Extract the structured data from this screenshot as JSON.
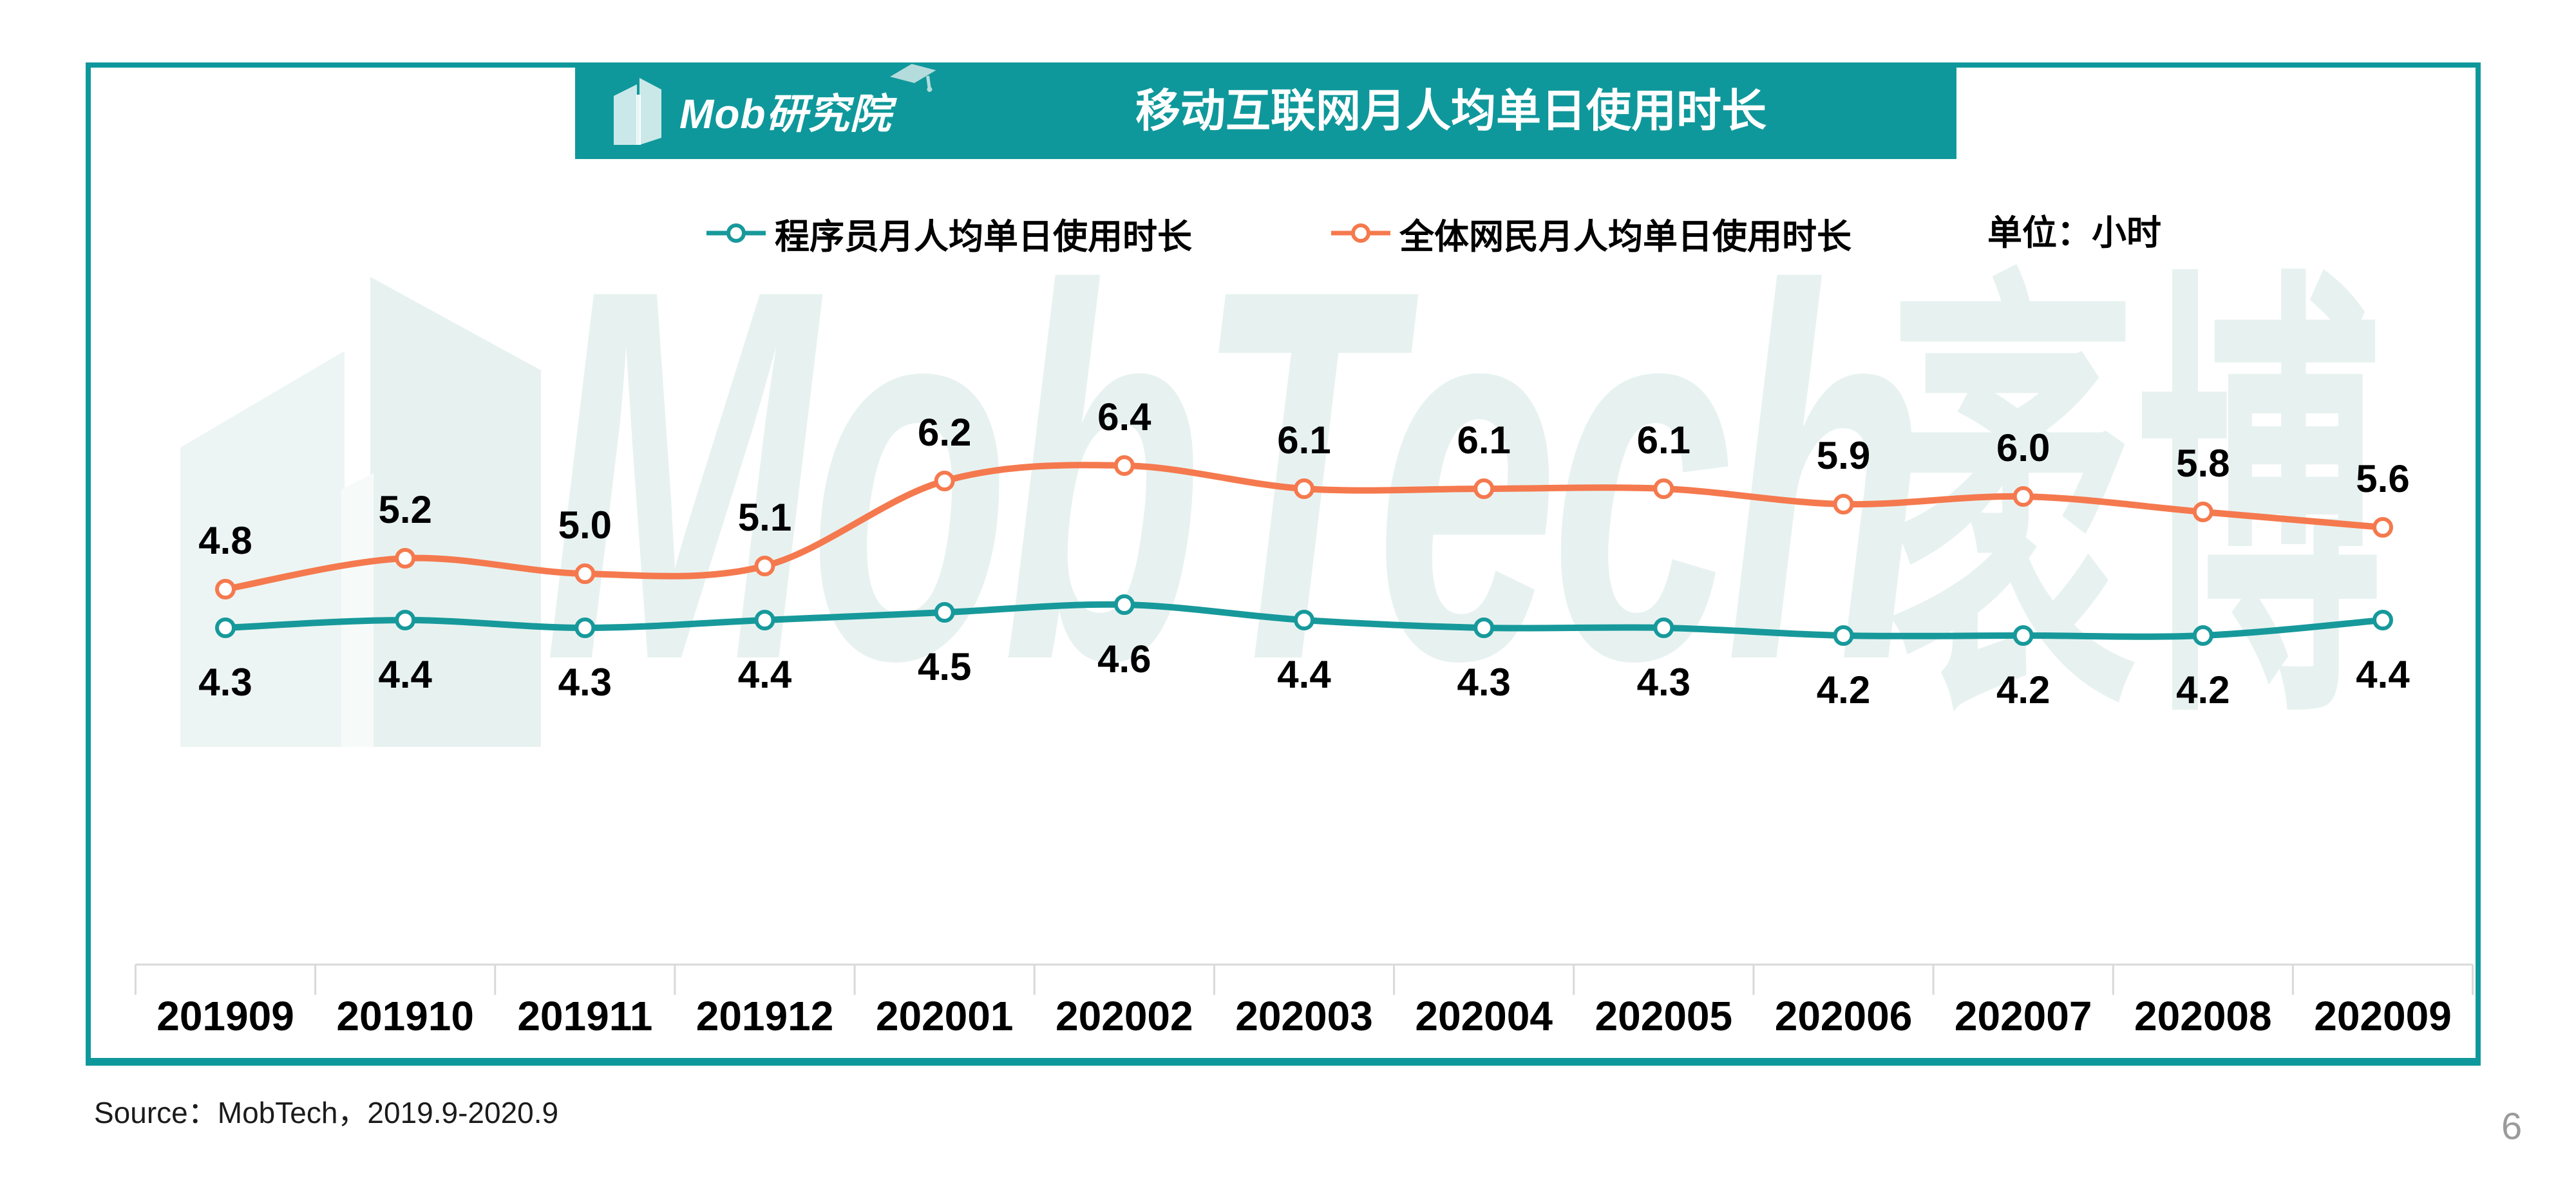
{
  "page": {
    "page_number": "6"
  },
  "header": {
    "logo_text": "Mob研究院",
    "title": "移动互联网月人均单日使用时长",
    "band_color": "#0f989b"
  },
  "legend": {
    "unit_label": "单位：小时"
  },
  "chart_data": {
    "type": "line",
    "title": "移动互联网月人均单日使用时长",
    "unit": "小时",
    "categories": [
      "201909",
      "201910",
      "201911",
      "201912",
      "202001",
      "202002",
      "202003",
      "202004",
      "202005",
      "202006",
      "202007",
      "202008",
      "202009"
    ],
    "series": [
      {
        "name": "程序员月人均单日使用时长",
        "color": "#17999b",
        "marker": "open-circle",
        "label_position": "below",
        "values": [
          4.3,
          4.4,
          4.3,
          4.4,
          4.5,
          4.6,
          4.4,
          4.3,
          4.3,
          4.2,
          4.2,
          4.2,
          4.4
        ]
      },
      {
        "name": "全体网民月人均单日使用时长",
        "color": "#f5794e",
        "marker": "open-circle",
        "label_position": "above",
        "values": [
          4.8,
          5.2,
          5.0,
          5.1,
          6.2,
          6.4,
          6.1,
          6.1,
          6.1,
          5.9,
          6.0,
          5.8,
          5.6
        ]
      }
    ],
    "ylim": [
      4.0,
      7.0
    ],
    "grid": false,
    "legend_position": "top",
    "value_labels": true,
    "xaxis_line_color": "#d9d9d9"
  },
  "watermark": {
    "text_latin": "MobTech",
    "text_cjk": "袤博",
    "color": "#e7f2f0"
  },
  "footer": {
    "source": "Source：MobTech，2019.9-2020.9"
  },
  "colors": {
    "frame_teal": "#0f989b",
    "series_teal": "#17999b",
    "series_orange": "#f5794e",
    "axis_gray": "#d9d9d9",
    "text_black": "#000000",
    "page_number_gray": "#9b9b9b",
    "watermark_teal": "#e7f2f0"
  }
}
